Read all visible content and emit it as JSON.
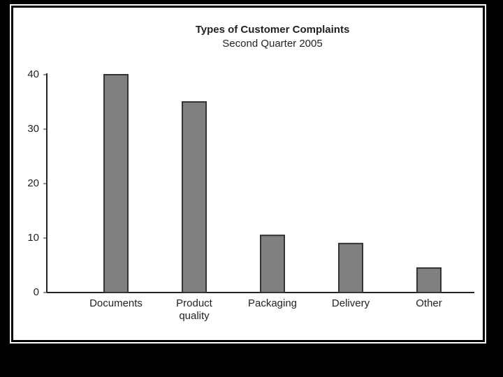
{
  "chart_data": {
    "type": "bar",
    "title": "Types of Customer Complaints",
    "subtitle": "Second Quarter 2005",
    "categories": [
      "Documents",
      "Product quality",
      "Packaging",
      "Delivery",
      "Other"
    ],
    "values": [
      40,
      35,
      10.5,
      9,
      4.5
    ],
    "color": "#808080",
    "ylim": [
      0,
      40
    ],
    "yticks": [
      0,
      10,
      20,
      30,
      40
    ],
    "grid": false
  }
}
